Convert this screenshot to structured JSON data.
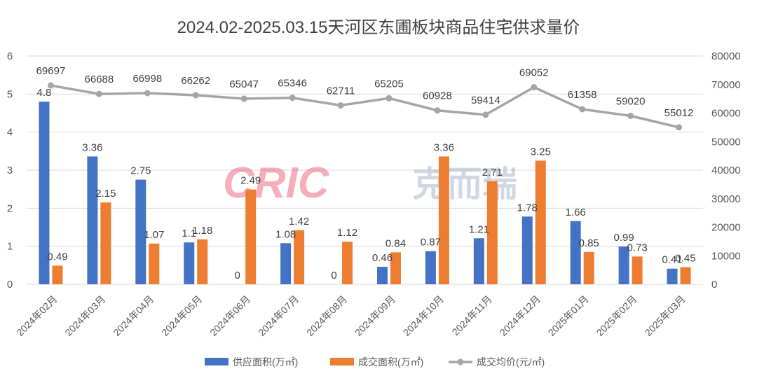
{
  "chart_data": {
    "type": "bar",
    "title": "2024.02-2025.03.15天河区东圃板块商品住宅供求量价",
    "categories": [
      "2024年02月",
      "2024年03月",
      "2024年04月",
      "2024年05月",
      "2024年06月",
      "2024年07月",
      "2024年08月",
      "2024年09月",
      "2024年10月",
      "2024年11月",
      "2024年12月",
      "2025年01月",
      "2025年02月",
      "2025年03月"
    ],
    "series": [
      {
        "name": "供应面积(万㎡)",
        "type": "bar",
        "axis": "left",
        "color": "#4472C4",
        "values": [
          4.8,
          3.36,
          2.75,
          1.1,
          0,
          1.08,
          0,
          0.46,
          0.87,
          1.21,
          1.78,
          1.66,
          0.99,
          0.41
        ]
      },
      {
        "name": "成交面积(万㎡)",
        "type": "bar",
        "axis": "left",
        "color": "#ED7D31",
        "values": [
          0.49,
          2.15,
          1.07,
          1.18,
          2.49,
          1.42,
          1.12,
          0.84,
          3.36,
          2.71,
          3.25,
          0.85,
          0.73,
          0.45
        ]
      },
      {
        "name": "成交均价(元/㎡)",
        "type": "line",
        "axis": "right",
        "color": "#A5A5A5",
        "values": [
          69697,
          66688,
          66998,
          66262,
          65047,
          65346,
          62711,
          65205,
          60928,
          59414,
          69052,
          61358,
          59020,
          55012
        ]
      }
    ],
    "y_left": {
      "min": 0,
      "max": 6,
      "ticks": [
        "0",
        "1",
        "2",
        "3",
        "4",
        "5",
        "6"
      ]
    },
    "y_right": {
      "min": 0,
      "max": 80000,
      "ticks": [
        "0",
        "10000",
        "20000",
        "30000",
        "40000",
        "50000",
        "60000",
        "70000",
        "80000"
      ]
    },
    "grid": true,
    "legend": "bottom-center"
  },
  "watermark": {
    "latin": "CRIC",
    "chinese": "克而瑞"
  }
}
